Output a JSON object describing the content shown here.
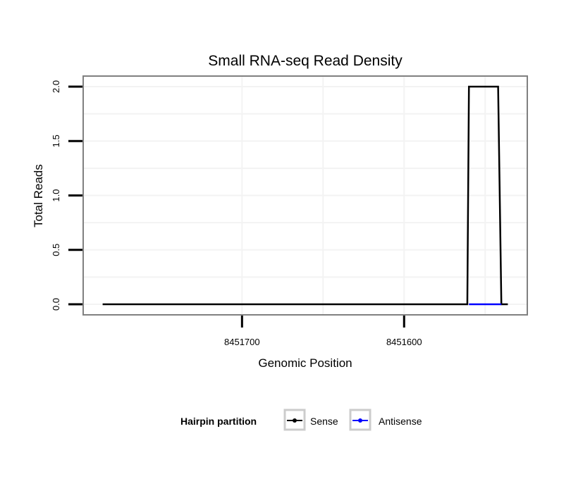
{
  "chart_data": {
    "type": "line",
    "title": "Small RNA-seq Read Density",
    "xlabel": "Genomic Position",
    "ylabel": "Total Reads",
    "x_reversed": true,
    "xlim": [
      8451798,
      8451524
    ],
    "ylim": [
      -0.097,
      2.097
    ],
    "xticks": [
      8451700,
      8451600
    ],
    "xtick_labels": [
      "8451700",
      "8451600"
    ],
    "yticks": [
      0,
      0.5,
      1,
      1.5,
      2
    ],
    "ytick_labels": [
      "0.0",
      "0.5",
      "1.0",
      "1.5",
      "2.0"
    ],
    "grid": true,
    "legend": {
      "title": "Hairpin partition",
      "position": "bottom"
    },
    "series": [
      {
        "name": "Sense",
        "color": "#000000",
        "x": [
          8451786,
          8451561,
          8451560,
          8451542,
          8451540,
          8451536
        ],
        "y": [
          0,
          0,
          2,
          2,
          0,
          0
        ]
      },
      {
        "name": "Antisense",
        "color": "#0000ff",
        "x": [
          8451560,
          8451540
        ],
        "y": [
          0,
          0
        ]
      }
    ]
  }
}
